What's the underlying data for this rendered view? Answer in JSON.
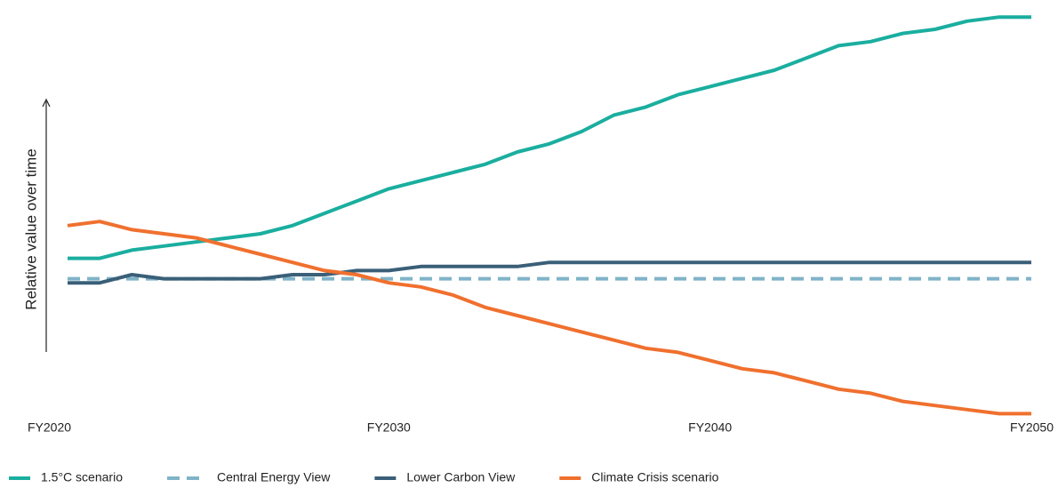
{
  "chart_data": {
    "type": "line",
    "y_label": "Relative value over time",
    "x": [
      2020,
      2021,
      2022,
      2023,
      2024,
      2025,
      2026,
      2027,
      2028,
      2029,
      2030,
      2031,
      2032,
      2033,
      2034,
      2035,
      2036,
      2037,
      2038,
      2039,
      2040,
      2041,
      2042,
      2043,
      2044,
      2045,
      2046,
      2047,
      2048,
      2049,
      2050
    ],
    "xlim": [
      2020,
      2050
    ],
    "xticks": [
      {
        "value": 2020,
        "label": "FY2020"
      },
      {
        "value": 2030,
        "label": "FY2030"
      },
      {
        "value": 2040,
        "label": "FY2040"
      },
      {
        "value": 2050,
        "label": "FY2050"
      }
    ],
    "ylim": [
      0,
      100
    ],
    "grid": false,
    "legend": "bottom",
    "series": [
      {
        "name": "1.5°C scenario",
        "color": "#1aae9f",
        "style": "solid",
        "values": [
          39,
          39,
          41,
          42,
          43,
          44,
          45,
          47,
          50,
          53,
          56,
          58,
          60,
          62,
          65,
          67,
          70,
          74,
          76,
          79,
          81,
          83,
          85,
          88,
          91,
          92,
          94,
          95,
          97,
          98,
          98
        ]
      },
      {
        "name": "Central Energy View",
        "color": "#7fb3c8",
        "style": "dashed",
        "values": [
          34,
          34,
          34,
          34,
          34,
          34,
          34,
          34,
          34,
          34,
          34,
          34,
          34,
          34,
          34,
          34,
          34,
          34,
          34,
          34,
          34,
          34,
          34,
          34,
          34,
          34,
          34,
          34,
          34,
          34,
          34
        ]
      },
      {
        "name": "Lower Carbon View",
        "color": "#3a5f78",
        "style": "solid",
        "values": [
          33,
          33,
          35,
          34,
          34,
          34,
          34,
          35,
          35,
          36,
          36,
          37,
          37,
          37,
          37,
          38,
          38,
          38,
          38,
          38,
          38,
          38,
          38,
          38,
          38,
          38,
          38,
          38,
          38,
          38,
          38
        ]
      },
      {
        "name": "Climate Crisis scenario",
        "color": "#f0702e",
        "style": "solid",
        "values": [
          47,
          48,
          46,
          45,
          44,
          42,
          40,
          38,
          36,
          35,
          33,
          32,
          30,
          27,
          25,
          23,
          21,
          19,
          17,
          16,
          14,
          12,
          11,
          9,
          7,
          6,
          4,
          3,
          2,
          1,
          1
        ]
      }
    ]
  }
}
